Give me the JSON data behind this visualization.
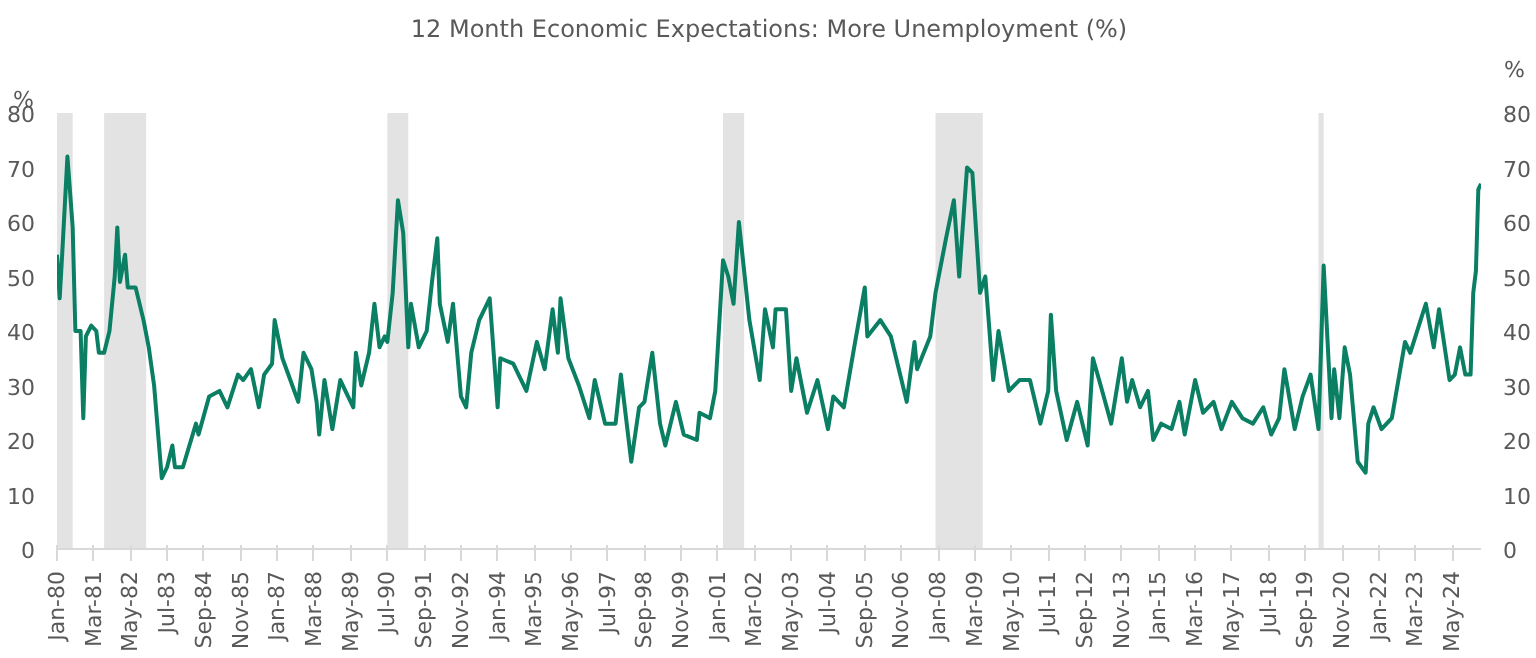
{
  "chart_data": {
    "type": "line",
    "title": "12 Month Economic Expectations: More Unemployment (%)",
    "ylabel": "%",
    "y2label": "%",
    "x": [
      "1980-01",
      "1980-02",
      "1980-03",
      "1980-05",
      "1980-07",
      "1980-08",
      "1980-10",
      "1980-11",
      "1980-12",
      "1981-02",
      "1981-04",
      "1981-05",
      "1981-07",
      "1981-09",
      "1981-11",
      "1981-12",
      "1982-01",
      "1982-03",
      "1982-04",
      "1982-07",
      "1982-10",
      "1982-12",
      "1983-02",
      "1983-05",
      "1983-07",
      "1983-09",
      "1983-10",
      "1984-01",
      "1984-06",
      "1984-07",
      "1984-11",
      "1985-03",
      "1985-06",
      "1985-10",
      "1985-12",
      "1986-03",
      "1986-06",
      "1986-08",
      "1986-11",
      "1986-12",
      "1987-03",
      "1987-06",
      "1987-09",
      "1987-11",
      "1988-02",
      "1988-04",
      "1988-05",
      "1988-07",
      "1988-10",
      "1989-01",
      "1989-03",
      "1989-06",
      "1989-07",
      "1989-09",
      "1989-12",
      "1990-02",
      "1990-04",
      "1990-06",
      "1990-07",
      "1990-09",
      "1990-11",
      "1991-01",
      "1991-03",
      "1991-04",
      "1991-07",
      "1991-10",
      "1991-12",
      "1992-02",
      "1992-03",
      "1992-06",
      "1992-08",
      "1992-11",
      "1993-01",
      "1993-03",
      "1993-06",
      "1993-10",
      "1994-01",
      "1994-02",
      "1994-07",
      "1994-12",
      "1995-04",
      "1995-07",
      "1995-10",
      "1995-12",
      "1996-01",
      "1996-04",
      "1996-08",
      "1996-12",
      "1997-02",
      "1997-06",
      "1997-10",
      "1997-12",
      "1998-04",
      "1998-07",
      "1998-09",
      "1998-12",
      "1999-03",
      "1999-05",
      "1999-09",
      "1999-12",
      "2000-05",
      "2000-06",
      "2000-10",
      "2000-12",
      "2001-03",
      "2001-05",
      "2001-07",
      "2001-09",
      "2002-01",
      "2002-05",
      "2002-07",
      "2002-10",
      "2002-11",
      "2003-03",
      "2003-05",
      "2003-07",
      "2003-11",
      "2004-03",
      "2004-07",
      "2004-09",
      "2005-01",
      "2005-05",
      "2005-09",
      "2005-10",
      "2006-03",
      "2006-07",
      "2006-11",
      "2007-01",
      "2007-04",
      "2007-05",
      "2007-10",
      "2007-12",
      "2008-04",
      "2008-07",
      "2008-09",
      "2008-12",
      "2009-02",
      "2009-05",
      "2009-07",
      "2009-10",
      "2009-12",
      "2010-04",
      "2010-08",
      "2010-12",
      "2011-04",
      "2011-07",
      "2011-08",
      "2011-10",
      "2012-02",
      "2012-06",
      "2012-10",
      "2012-12",
      "2013-03",
      "2013-07",
      "2013-11",
      "2014-01",
      "2014-03",
      "2014-06",
      "2014-09",
      "2014-11",
      "2015-02",
      "2015-06",
      "2015-09",
      "2015-11",
      "2016-03",
      "2016-06",
      "2016-10",
      "2017-01",
      "2017-05",
      "2017-09",
      "2018-01",
      "2018-05",
      "2018-08",
      "2018-11",
      "2019-01",
      "2019-05",
      "2019-08",
      "2019-11",
      "2020-02",
      "2020-04",
      "2020-07",
      "2020-08",
      "2020-10",
      "2020-12",
      "2021-02",
      "2021-05",
      "2021-08",
      "2021-09",
      "2021-11",
      "2022-02",
      "2022-06",
      "2022-11",
      "2023-01",
      "2023-05",
      "2023-07",
      "2023-10",
      "2023-12",
      "2024-04",
      "2024-06",
      "2024-08",
      "2024-10",
      "2024-12",
      "2025-01",
      "2025-02",
      "2025-03",
      "2025-04"
    ],
    "series": [
      {
        "color": "#0a7f63",
        "values": [
          54,
          46,
          54,
          72,
          59,
          40,
          40,
          24,
          39,
          41,
          40,
          36,
          36,
          40,
          50,
          59,
          49,
          54,
          48,
          48,
          42,
          37,
          30,
          13,
          15,
          19,
          15,
          15,
          23,
          21,
          28,
          29,
          26,
          32,
          31,
          33,
          26,
          32,
          34,
          42,
          35,
          31,
          27,
          36,
          33,
          27,
          21,
          31,
          22,
          31,
          29,
          26,
          36,
          30,
          36,
          45,
          37,
          39,
          38,
          47,
          64,
          58,
          37,
          45,
          37,
          40,
          49,
          57,
          45,
          38,
          45,
          28,
          26,
          36,
          42,
          46,
          26,
          35,
          34,
          29,
          38,
          33,
          44,
          36,
          46,
          35,
          30,
          24,
          31,
          23,
          23,
          32,
          16,
          26,
          27,
          36,
          23,
          19,
          27,
          21,
          20,
          25,
          24,
          29,
          53,
          50,
          45,
          60,
          42,
          31,
          44,
          37,
          44,
          44,
          29,
          35,
          25,
          31,
          22,
          28,
          26,
          37,
          48,
          39,
          42,
          39,
          31,
          27,
          38,
          33,
          39,
          47,
          57,
          64,
          50,
          70,
          69,
          47,
          50,
          31,
          40,
          29,
          31,
          31,
          23,
          29,
          43,
          29,
          20,
          27,
          19,
          35,
          30,
          23,
          35,
          27,
          31,
          26,
          29,
          20,
          23,
          22,
          27,
          21,
          31,
          25,
          27,
          22,
          27,
          24,
          23,
          26,
          21,
          24,
          33,
          22,
          28,
          32,
          22,
          52,
          24,
          33,
          24,
          37,
          32,
          16,
          14,
          23,
          26,
          22,
          24,
          38,
          36,
          42,
          45,
          37,
          44,
          31,
          32,
          37,
          32,
          32,
          47,
          51,
          66,
          67
        ]
      }
    ],
    "xlim": [
      "1980-01",
      "2025-04"
    ],
    "xticks": [
      {
        "value": "1980-01",
        "label": "Jan-80"
      },
      {
        "value": "1981-03",
        "label": "Mar-81"
      },
      {
        "value": "1982-05",
        "label": "May-82"
      },
      {
        "value": "1983-07",
        "label": "Jul-83"
      },
      {
        "value": "1984-09",
        "label": "Sep-84"
      },
      {
        "value": "1985-11",
        "label": "Nov-85"
      },
      {
        "value": "1987-01",
        "label": "Jan-87"
      },
      {
        "value": "1988-03",
        "label": "Mar-88"
      },
      {
        "value": "1989-05",
        "label": "May-89"
      },
      {
        "value": "1990-07",
        "label": "Jul-90"
      },
      {
        "value": "1991-09",
        "label": "Sep-91"
      },
      {
        "value": "1992-11",
        "label": "Nov-92"
      },
      {
        "value": "1994-01",
        "label": "Jan-94"
      },
      {
        "value": "1995-03",
        "label": "Mar-95"
      },
      {
        "value": "1996-05",
        "label": "May-96"
      },
      {
        "value": "1997-07",
        "label": "Jul-97"
      },
      {
        "value": "1998-09",
        "label": "Sep-98"
      },
      {
        "value": "1999-11",
        "label": "Nov-99"
      },
      {
        "value": "2001-01",
        "label": "Jan-01"
      },
      {
        "value": "2002-03",
        "label": "Mar-02"
      },
      {
        "value": "2003-05",
        "label": "May-03"
      },
      {
        "value": "2004-07",
        "label": "Jul-04"
      },
      {
        "value": "2005-09",
        "label": "Sep-05"
      },
      {
        "value": "2006-11",
        "label": "Nov-06"
      },
      {
        "value": "2008-01",
        "label": "Jan-08"
      },
      {
        "value": "2009-03",
        "label": "Mar-09"
      },
      {
        "value": "2010-05",
        "label": "May-10"
      },
      {
        "value": "2011-07",
        "label": "Jul-11"
      },
      {
        "value": "2012-09",
        "label": "Sep-12"
      },
      {
        "value": "2013-11",
        "label": "Nov-13"
      },
      {
        "value": "2015-01",
        "label": "Jan-15"
      },
      {
        "value": "2016-03",
        "label": "Mar-16"
      },
      {
        "value": "2017-05",
        "label": "May-17"
      },
      {
        "value": "2018-07",
        "label": "Jul-18"
      },
      {
        "value": "2019-09",
        "label": "Sep-19"
      },
      {
        "value": "2020-11",
        "label": "Nov-20"
      },
      {
        "value": "2022-01",
        "label": "Jan-22"
      },
      {
        "value": "2023-03",
        "label": "Mar-23"
      },
      {
        "value": "2024-05",
        "label": "May-24"
      }
    ],
    "ylim": [
      0,
      80
    ],
    "yticks": [
      0,
      10,
      20,
      30,
      40,
      50,
      60,
      70,
      80
    ],
    "y2lim": [
      0,
      80
    ],
    "y2ticks": [
      0,
      10,
      20,
      30,
      40,
      50,
      60,
      70,
      80
    ],
    "bands": [
      {
        "axis": "x",
        "from": "1980-01",
        "to": "1980-07",
        "color": "#e3e3e3"
      },
      {
        "axis": "x",
        "from": "1981-07",
        "to": "1982-11",
        "color": "#e3e3e3"
      },
      {
        "axis": "x",
        "from": "1990-07",
        "to": "1991-03",
        "color": "#e3e3e3"
      },
      {
        "axis": "x",
        "from": "2001-03",
        "to": "2001-11",
        "color": "#e3e3e3"
      },
      {
        "axis": "x",
        "from": "2007-12",
        "to": "2009-06",
        "color": "#e3e3e3"
      },
      {
        "axis": "x",
        "from": "2020-02",
        "to": "2020-04",
        "color": "#e3e3e3"
      }
    ],
    "grid": false,
    "line_style": "solid"
  }
}
